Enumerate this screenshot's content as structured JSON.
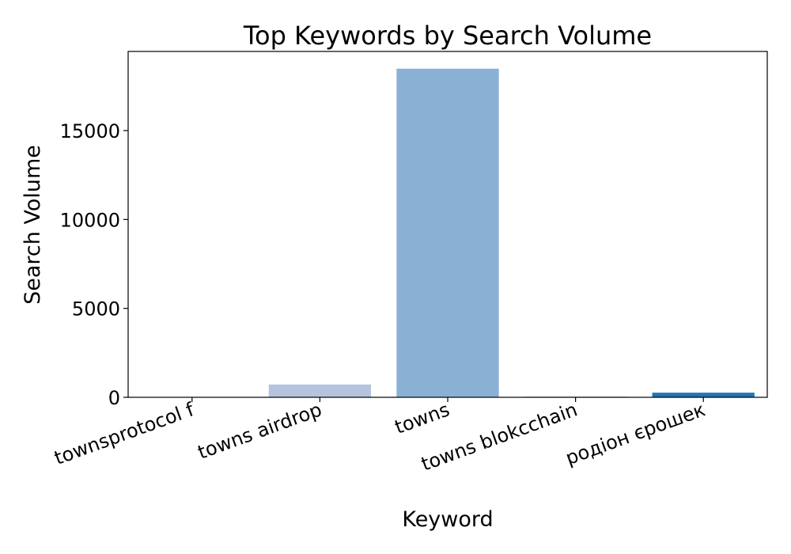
{
  "chart_data": {
    "type": "bar",
    "title": "Top Keywords by Search Volume",
    "xlabel": "Keyword",
    "ylabel": "Search Volume",
    "categories": [
      "townsprotocol f",
      "towns airdrop",
      "towns",
      "towns blokcchain",
      "родіон єрошек"
    ],
    "values": [
      20,
      720,
      18480,
      30,
      260
    ],
    "colors": [
      "#dbe3f0",
      "#b4c4df",
      "#8ab0d4",
      "#4a90c0",
      "#1f77b4"
    ],
    "ylim": [
      0,
      19450
    ],
    "yticks": [
      0,
      5000,
      10000,
      15000
    ],
    "grid": false,
    "legend": "none"
  }
}
